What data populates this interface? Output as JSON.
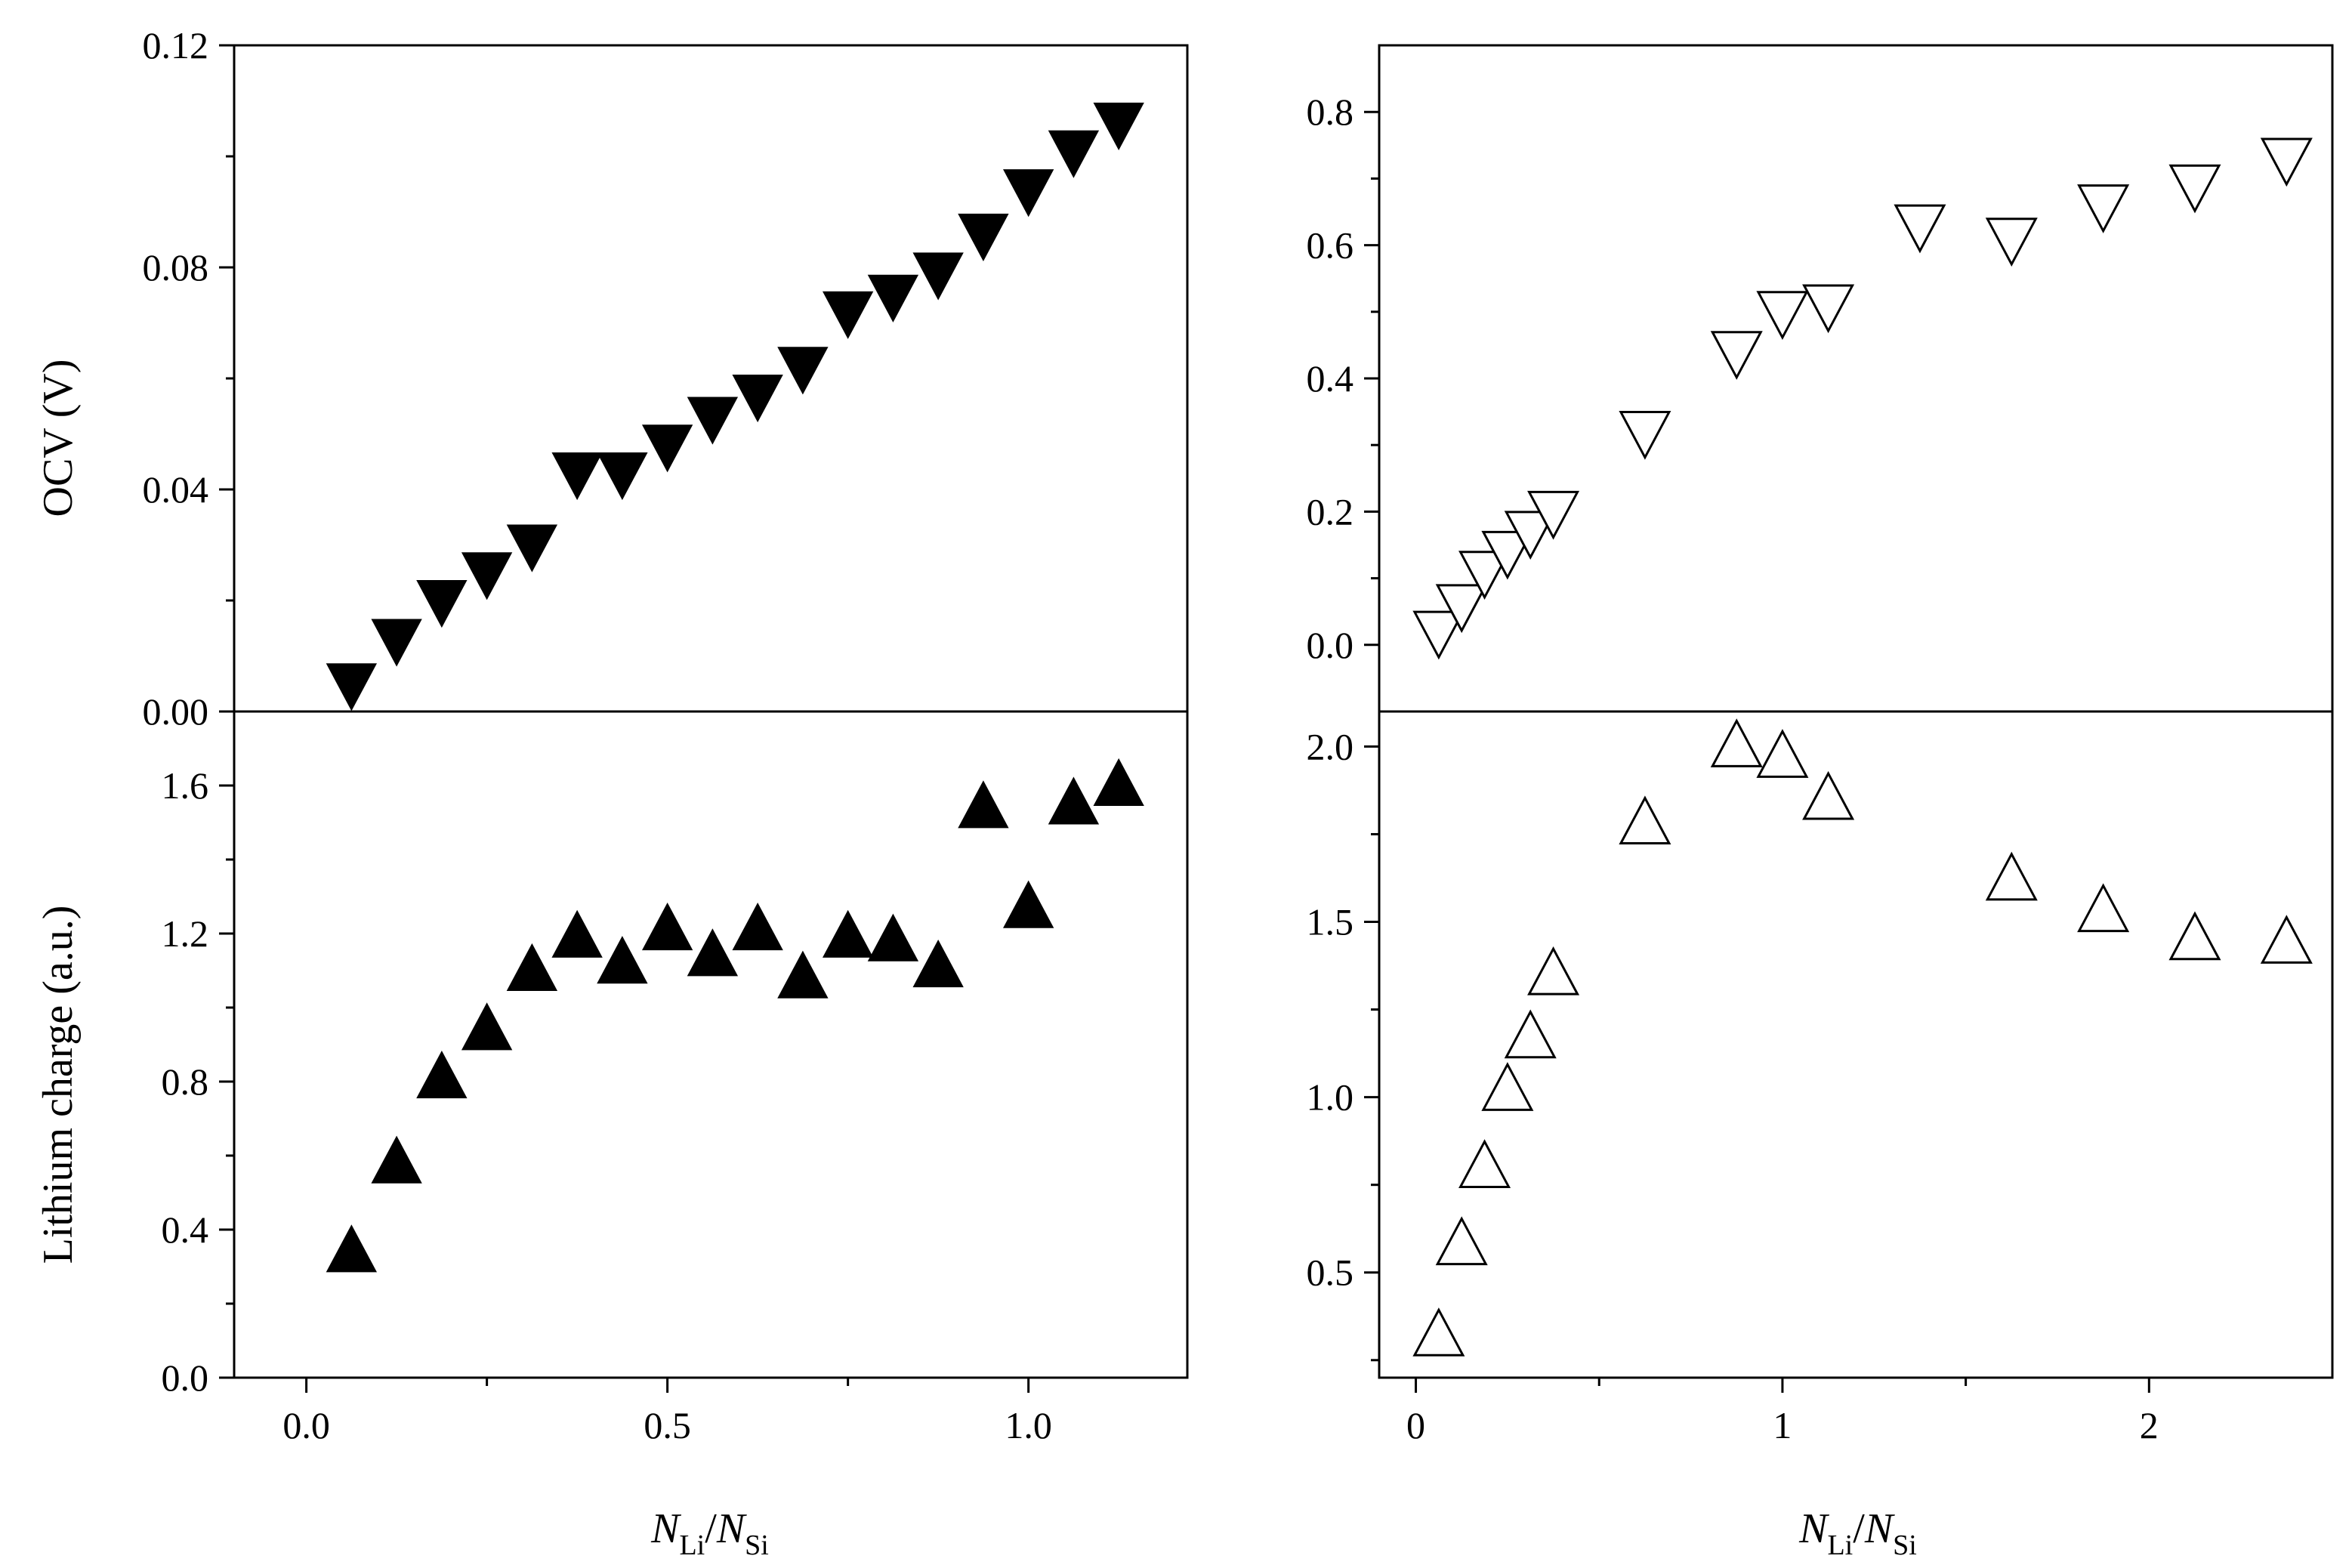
{
  "chart_data": [
    {
      "id": "ocv_left",
      "type": "scatter",
      "marker": "triangle-down-filled",
      "ylabel": "OCV (V)",
      "xlim": [
        -0.1,
        1.22
      ],
      "ylim": [
        0,
        0.12
      ],
      "yticks": [
        "0.00",
        "0.04",
        "0.08",
        "0.12"
      ],
      "yminor": [
        0.02,
        0.06,
        0.1
      ],
      "x": [
        0.0625,
        0.125,
        0.1875,
        0.25,
        0.3125,
        0.375,
        0.4375,
        0.5,
        0.5625,
        0.625,
        0.6875,
        0.75,
        0.8125,
        0.875,
        0.9375,
        1.0,
        1.0625,
        1.125
      ],
      "y": [
        0.005,
        0.013,
        0.02,
        0.025,
        0.03,
        0.043,
        0.043,
        0.048,
        0.053,
        0.057,
        0.062,
        0.072,
        0.075,
        0.079,
        0.086,
        0.094,
        0.101,
        0.106
      ]
    },
    {
      "id": "charge_left",
      "type": "scatter",
      "marker": "triangle-up-filled",
      "ylabel": "Lithium charge (a.u.)",
      "xlabel": "N_Li/N_Si",
      "xlim": [
        -0.1,
        1.22
      ],
      "ylim": [
        0,
        1.8
      ],
      "xticks": [
        "0.0",
        "0.5",
        "1.0"
      ],
      "xminor": [
        0.25,
        0.75
      ],
      "yticks": [
        "0.0",
        "0.4",
        "0.8",
        "1.2",
        "1.6"
      ],
      "yminor": [
        0.2,
        0.6,
        1.0,
        1.4
      ],
      "x": [
        0.0625,
        0.125,
        0.1875,
        0.25,
        0.3125,
        0.375,
        0.4375,
        0.5,
        0.5625,
        0.625,
        0.6875,
        0.75,
        0.8125,
        0.875,
        0.9375,
        1.0,
        1.0625,
        1.125
      ],
      "y": [
        0.34,
        0.58,
        0.81,
        0.94,
        1.1,
        1.19,
        1.12,
        1.21,
        1.14,
        1.21,
        1.08,
        1.19,
        1.18,
        1.11,
        1.54,
        1.27,
        1.55,
        1.6
      ]
    },
    {
      "id": "ocv_right",
      "type": "scatter",
      "marker": "triangle-down-open",
      "xlim": [
        -0.1,
        2.5
      ],
      "ylim": [
        -0.1,
        0.9
      ],
      "yticks": [
        "0.0",
        "0.2",
        "0.4",
        "0.6",
        "0.8"
      ],
      "yminor": [
        0.1,
        0.3,
        0.5,
        0.7
      ],
      "x": [
        0.0625,
        0.125,
        0.1875,
        0.25,
        0.3125,
        0.375,
        0.625,
        0.875,
        1.0,
        1.125,
        1.375,
        1.625,
        1.875,
        2.125,
        2.375
      ],
      "y": [
        0.02,
        0.06,
        0.11,
        0.14,
        0.17,
        0.2,
        0.32,
        0.44,
        0.5,
        0.51,
        0.63,
        0.61,
        0.66,
        0.69,
        0.73
      ]
    },
    {
      "id": "charge_right",
      "type": "scatter",
      "marker": "triangle-up-open",
      "xlabel": "N_Li/N_Si",
      "xlim": [
        -0.1,
        2.5
      ],
      "ylim": [
        0.2,
        2.1
      ],
      "xticks": [
        "0",
        "1",
        "2"
      ],
      "xminor": [
        0.5,
        1.5
      ],
      "yticks": [
        "0.5",
        "1.0",
        "1.5",
        "2.0"
      ],
      "yminor": [
        0.25,
        0.75,
        1.25,
        1.75
      ],
      "x": [
        0.0625,
        0.125,
        0.1875,
        0.25,
        0.3125,
        0.375,
        0.625,
        0.875,
        1.0,
        1.125,
        1.625,
        1.875,
        2.125,
        2.375
      ],
      "y": [
        0.32,
        0.58,
        0.8,
        1.02,
        1.17,
        1.35,
        1.78,
        2.0,
        1.97,
        1.85,
        1.62,
        1.53,
        1.45,
        1.44
      ]
    }
  ],
  "xlabel_parts": {
    "n1": "N",
    "sub1": "Li",
    "slash": "/",
    "n2": "N",
    "sub2": "Si"
  }
}
